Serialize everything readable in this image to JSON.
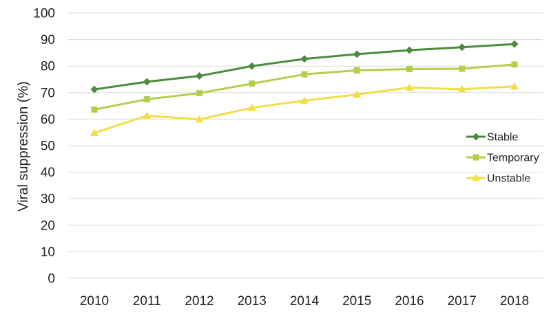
{
  "chart_data": {
    "type": "line",
    "title": "",
    "xlabel": "",
    "ylabel": "Viral suppression (%)",
    "categories": [
      "2010",
      "2011",
      "2012",
      "2013",
      "2014",
      "2015",
      "2016",
      "2017",
      "2018"
    ],
    "yticks": [
      "0",
      "10",
      "20",
      "30",
      "40",
      "50",
      "60",
      "70",
      "80",
      "90",
      "100"
    ],
    "ylim": [
      0,
      100
    ],
    "grid": "horizontal",
    "legend_position": "right",
    "series": [
      {
        "name": "Stable",
        "marker": "diamond",
        "color": "#4a8a3c",
        "values": [
          71.2,
          74.1,
          76.3,
          80.0,
          82.7,
          84.5,
          86.0,
          87.1,
          88.3
        ]
      },
      {
        "name": "Temporary",
        "marker": "square",
        "color": "#b3cf4a",
        "values": [
          63.6,
          67.5,
          69.8,
          73.4,
          76.9,
          78.4,
          78.9,
          79.0,
          80.6
        ]
      },
      {
        "name": "Unstable",
        "marker": "triangle",
        "color": "#f2de44",
        "values": [
          54.8,
          61.3,
          59.9,
          64.3,
          67.0,
          69.3,
          71.9,
          71.3,
          72.3
        ]
      }
    ]
  }
}
